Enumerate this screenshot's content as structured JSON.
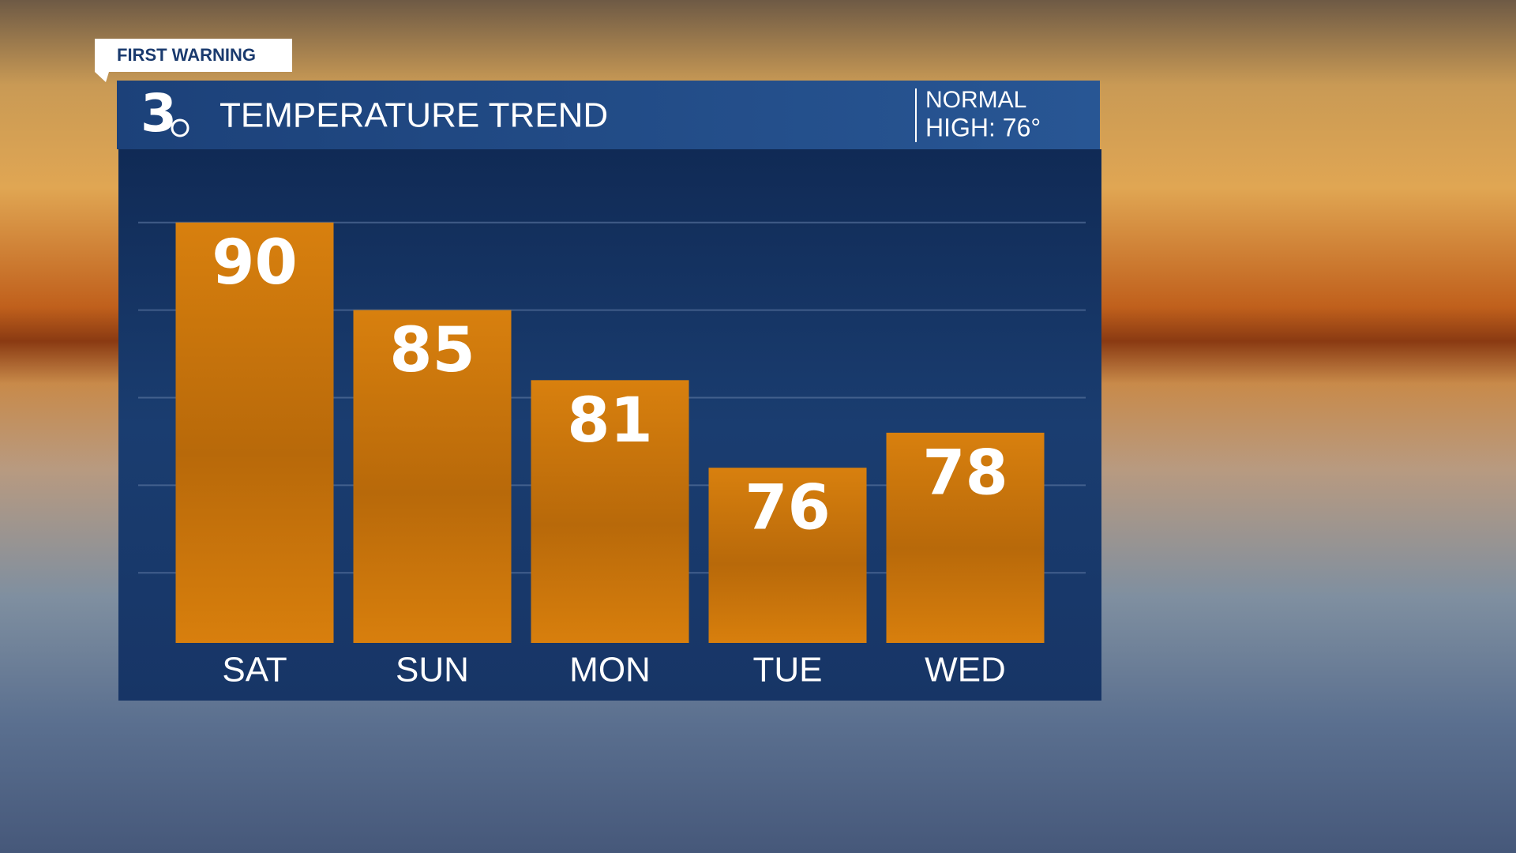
{
  "chart_data": {
    "type": "bar",
    "badge": "FIRST WARNING",
    "logo": "3",
    "title": "TEMPERATURE TREND",
    "annotation": [
      "NORMAL",
      "HIGH: 76°"
    ],
    "categories": [
      "SAT",
      "SUN",
      "MON",
      "TUE",
      "WED"
    ],
    "values": [
      90,
      85,
      81,
      76,
      78
    ],
    "color": "#d27a0c",
    "ylim": [
      66,
      94
    ],
    "yticks": [
      70,
      75,
      80,
      85,
      90
    ],
    "grid": true
  }
}
